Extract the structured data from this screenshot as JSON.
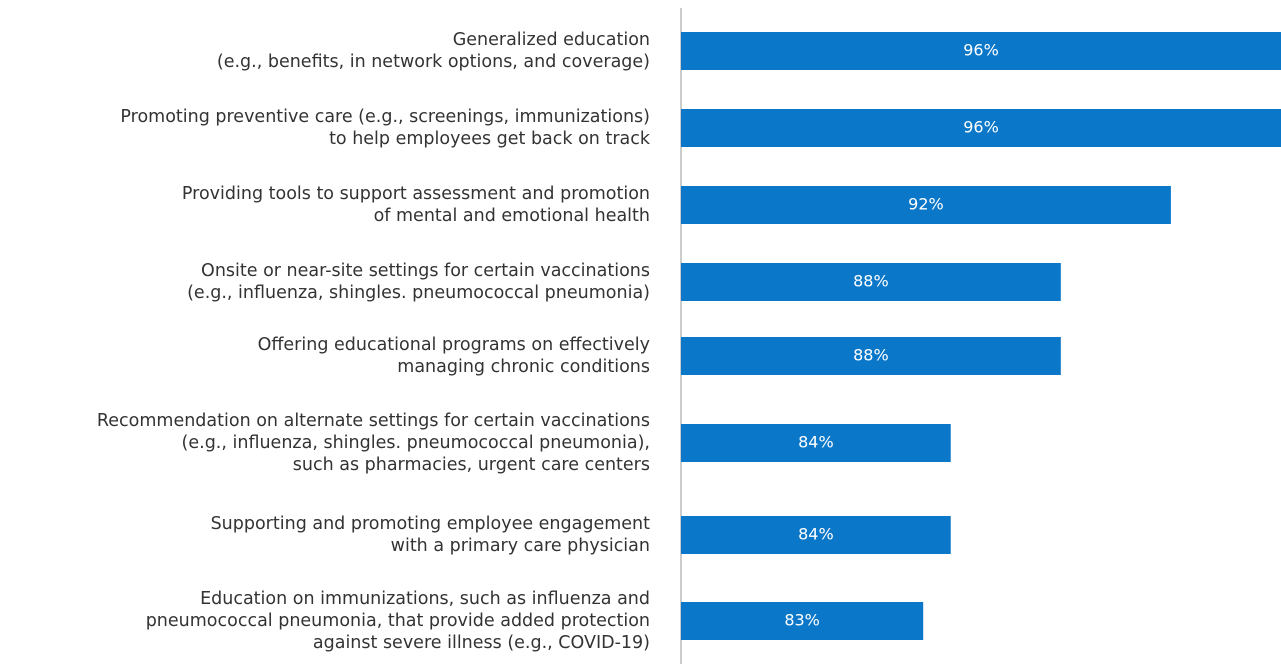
{
  "chart_data": {
    "type": "bar",
    "orientation": "horizontal",
    "categories": [
      "Generalized education\n(e.g., benefits, in network options, and coverage)",
      "Promoting preventive care (e.g., screenings, immunizations)\nto help employees get back on track",
      "Providing tools to support assessment and promotion\nof mental and emotional health",
      "Onsite or near-site settings for certain vaccinations\n(e.g., influenza, shingles. pneumococcal pneumonia)",
      "Offering educational programs on effectively\nmanaging chronic conditions",
      "Recommendation on alternate settings for certain vaccinations\n(e.g., influenza, shingles. pneumococcal pneumonia),\nsuch as pharmacies, urgent care centers",
      "Supporting and promoting employee engagement\nwith a primary care physician",
      "Education on immunizations, such as  influenza and\npneumococcal pneumonia, that provide added protection\nagainst severe illness (e.g., COVID-19)"
    ],
    "values": [
      96,
      96,
      92,
      88,
      88,
      84,
      84,
      83
    ],
    "value_labels": [
      "96%",
      "96%",
      "92%",
      "88%",
      "88%",
      "84%",
      "84%",
      "83%"
    ],
    "color": "#0a77c9",
    "xlim": [
      74.2,
      96
    ]
  }
}
